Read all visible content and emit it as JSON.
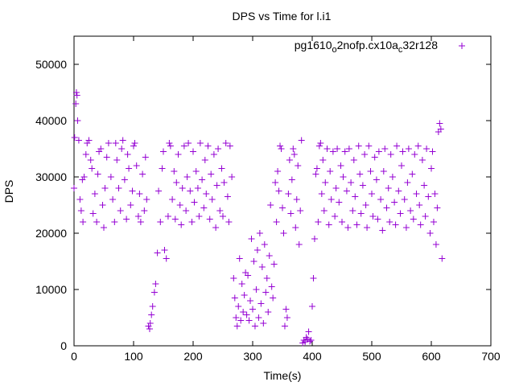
{
  "chart_data": {
    "type": "scatter",
    "title": "DPS vs Time for l.i1",
    "xlabel": "Time(s)",
    "ylabel": "DPS",
    "xlim": [
      0,
      700
    ],
    "ylim": [
      0,
      55000
    ],
    "xticks": [
      0,
      100,
      200,
      300,
      400,
      500,
      600,
      700
    ],
    "yticks": [
      0,
      10000,
      20000,
      30000,
      40000,
      50000
    ],
    "grid": false,
    "legend_position": "top-right",
    "marker": "plus",
    "colors": {
      "series": "#9400d3",
      "axis": "#000000"
    },
    "series": [
      {
        "name_parts": {
          "a": "pg1610",
          "b": "o",
          "c": "2nofp.cx10a",
          "d": "c",
          "e": "32r128"
        },
        "points": [
          [
            0,
            28000
          ],
          [
            1,
            37000
          ],
          [
            3,
            43000
          ],
          [
            4,
            45000
          ],
          [
            5,
            44500
          ],
          [
            6,
            40000
          ],
          [
            8,
            36500
          ],
          [
            10,
            26000
          ],
          [
            12,
            24000
          ],
          [
            14,
            29500
          ],
          [
            15,
            22000
          ],
          [
            17,
            30000
          ],
          [
            20,
            34000
          ],
          [
            22,
            36000
          ],
          [
            25,
            36500
          ],
          [
            28,
            33000
          ],
          [
            30,
            31500
          ],
          [
            32,
            23500
          ],
          [
            35,
            27000
          ],
          [
            38,
            22000
          ],
          [
            40,
            30500
          ],
          [
            42,
            34500
          ],
          [
            45,
            35000
          ],
          [
            48,
            25000
          ],
          [
            50,
            21000
          ],
          [
            52,
            28000
          ],
          [
            55,
            33500
          ],
          [
            58,
            36000
          ],
          [
            62,
            30000
          ],
          [
            65,
            26000
          ],
          [
            68,
            22000
          ],
          [
            70,
            36000
          ],
          [
            72,
            33000
          ],
          [
            75,
            28000
          ],
          [
            78,
            24000
          ],
          [
            80,
            35000
          ],
          [
            82,
            36500
          ],
          [
            85,
            29500
          ],
          [
            88,
            22500
          ],
          [
            90,
            34000
          ],
          [
            92,
            31500
          ],
          [
            95,
            25000
          ],
          [
            98,
            27500
          ],
          [
            100,
            35500
          ],
          [
            102,
            36000
          ],
          [
            105,
            32000
          ],
          [
            108,
            23000
          ],
          [
            110,
            27000
          ],
          [
            112,
            22000
          ],
          [
            115,
            30500
          ],
          [
            118,
            24000
          ],
          [
            120,
            33500
          ],
          [
            122,
            26000
          ],
          [
            125,
            3500
          ],
          [
            127,
            3000
          ],
          [
            128,
            4000
          ],
          [
            130,
            5500
          ],
          [
            132,
            7000
          ],
          [
            135,
            9500
          ],
          [
            137,
            11000
          ],
          [
            140,
            16500
          ],
          [
            142,
            27500
          ],
          [
            145,
            22000
          ],
          [
            148,
            31500
          ],
          [
            150,
            34500
          ],
          [
            152,
            17000
          ],
          [
            155,
            15500
          ],
          [
            158,
            23000
          ],
          [
            160,
            36000
          ],
          [
            162,
            35500
          ],
          [
            165,
            26000
          ],
          [
            168,
            31000
          ],
          [
            170,
            22500
          ],
          [
            172,
            29000
          ],
          [
            175,
            34000
          ],
          [
            178,
            25000
          ],
          [
            180,
            21500
          ],
          [
            182,
            28000
          ],
          [
            185,
            35500
          ],
          [
            188,
            24000
          ],
          [
            190,
            30000
          ],
          [
            192,
            36000
          ],
          [
            195,
            27500
          ],
          [
            198,
            22000
          ],
          [
            200,
            34500
          ],
          [
            202,
            25500
          ],
          [
            205,
            31000
          ],
          [
            208,
            28000
          ],
          [
            210,
            23000
          ],
          [
            212,
            36000
          ],
          [
            215,
            29500
          ],
          [
            218,
            24500
          ],
          [
            220,
            33000
          ],
          [
            222,
            27000
          ],
          [
            225,
            35500
          ],
          [
            228,
            22500
          ],
          [
            230,
            30500
          ],
          [
            232,
            26000
          ],
          [
            235,
            34000
          ],
          [
            238,
            21000
          ],
          [
            240,
            28500
          ],
          [
            242,
            35000
          ],
          [
            245,
            24000
          ],
          [
            248,
            31500
          ],
          [
            250,
            23000
          ],
          [
            252,
            29000
          ],
          [
            255,
            36000
          ],
          [
            258,
            26500
          ],
          [
            260,
            22000
          ],
          [
            262,
            35500
          ],
          [
            265,
            30000
          ],
          [
            268,
            12000
          ],
          [
            270,
            8500
          ],
          [
            272,
            5000
          ],
          [
            274,
            3500
          ],
          [
            276,
            7000
          ],
          [
            278,
            15500
          ],
          [
            280,
            4500
          ],
          [
            282,
            11000
          ],
          [
            284,
            6000
          ],
          [
            286,
            9000
          ],
          [
            288,
            13000
          ],
          [
            290,
            5500
          ],
          [
            292,
            12500
          ],
          [
            294,
            4500
          ],
          [
            296,
            8000
          ],
          [
            298,
            19000
          ],
          [
            300,
            6500
          ],
          [
            302,
            15000
          ],
          [
            304,
            3500
          ],
          [
            306,
            10000
          ],
          [
            308,
            17000
          ],
          [
            310,
            5000
          ],
          [
            312,
            20000
          ],
          [
            314,
            7500
          ],
          [
            316,
            14000
          ],
          [
            318,
            4000
          ],
          [
            320,
            18000
          ],
          [
            322,
            9500
          ],
          [
            324,
            12000
          ],
          [
            326,
            6000
          ],
          [
            328,
            16000
          ],
          [
            330,
            25000
          ],
          [
            332,
            10500
          ],
          [
            334,
            8500
          ],
          [
            336,
            14500
          ],
          [
            338,
            29000
          ],
          [
            340,
            22000
          ],
          [
            342,
            31000
          ],
          [
            344,
            27500
          ],
          [
            346,
            35500
          ],
          [
            348,
            35000
          ],
          [
            350,
            24500
          ],
          [
            352,
            20000
          ],
          [
            354,
            3500
          ],
          [
            356,
            6500
          ],
          [
            358,
            5000
          ],
          [
            360,
            27000
          ],
          [
            362,
            33000
          ],
          [
            364,
            23500
          ],
          [
            366,
            29500
          ],
          [
            368,
            35000
          ],
          [
            370,
            34000
          ],
          [
            372,
            21000
          ],
          [
            374,
            26000
          ],
          [
            376,
            32000
          ],
          [
            378,
            18000
          ],
          [
            380,
            24000
          ],
          [
            382,
            36500
          ],
          [
            384,
            500
          ],
          [
            386,
            1000
          ],
          [
            388,
            700
          ],
          [
            390,
            1500
          ],
          [
            392,
            1200
          ],
          [
            394,
            2500
          ],
          [
            396,
            800
          ],
          [
            398,
            1000
          ],
          [
            400,
            7000
          ],
          [
            402,
            12000
          ],
          [
            404,
            19000
          ],
          [
            406,
            30500
          ],
          [
            408,
            31500
          ],
          [
            410,
            22000
          ],
          [
            412,
            35500
          ],
          [
            414,
            36000
          ],
          [
            416,
            27000
          ],
          [
            418,
            33000
          ],
          [
            420,
            24000
          ],
          [
            422,
            29000
          ],
          [
            425,
            35000
          ],
          [
            428,
            21500
          ],
          [
            430,
            31000
          ],
          [
            432,
            26000
          ],
          [
            435,
            34500
          ],
          [
            438,
            23000
          ],
          [
            440,
            28000
          ],
          [
            442,
            35000
          ],
          [
            445,
            25500
          ],
          [
            448,
            32000
          ],
          [
            450,
            22000
          ],
          [
            452,
            30000
          ],
          [
            455,
            34500
          ],
          [
            458,
            27500
          ],
          [
            460,
            21000
          ],
          [
            462,
            35000
          ],
          [
            465,
            29000
          ],
          [
            468,
            24000
          ],
          [
            470,
            33000
          ],
          [
            472,
            26500
          ],
          [
            475,
            21500
          ],
          [
            478,
            35500
          ],
          [
            480,
            30500
          ],
          [
            482,
            23500
          ],
          [
            485,
            28500
          ],
          [
            488,
            34000
          ],
          [
            490,
            25000
          ],
          [
            492,
            21000
          ],
          [
            495,
            35500
          ],
          [
            498,
            31000
          ],
          [
            500,
            27000
          ],
          [
            502,
            23000
          ],
          [
            505,
            33500
          ],
          [
            508,
            29500
          ],
          [
            510,
            22500
          ],
          [
            512,
            34500
          ],
          [
            515,
            26000
          ],
          [
            518,
            20500
          ],
          [
            520,
            31000
          ],
          [
            522,
            35000
          ],
          [
            525,
            24500
          ],
          [
            528,
            28000
          ],
          [
            530,
            22000
          ],
          [
            532,
            34000
          ],
          [
            535,
            30000
          ],
          [
            538,
            25500
          ],
          [
            540,
            21500
          ],
          [
            542,
            35500
          ],
          [
            545,
            27500
          ],
          [
            548,
            23500
          ],
          [
            550,
            32000
          ],
          [
            552,
            34500
          ],
          [
            555,
            26000
          ],
          [
            558,
            21000
          ],
          [
            560,
            29000
          ],
          [
            562,
            35000
          ],
          [
            565,
            24000
          ],
          [
            568,
            30500
          ],
          [
            570,
            22500
          ],
          [
            572,
            34000
          ],
          [
            575,
            27000
          ],
          [
            578,
            35500
          ],
          [
            580,
            25000
          ],
          [
            582,
            21500
          ],
          [
            585,
            33000
          ],
          [
            588,
            28500
          ],
          [
            590,
            23000
          ],
          [
            592,
            35000
          ],
          [
            595,
            26500
          ],
          [
            598,
            20000
          ],
          [
            600,
            31500
          ],
          [
            602,
            34500
          ],
          [
            604,
            22000
          ],
          [
            606,
            27000
          ],
          [
            608,
            18000
          ],
          [
            610,
            24500
          ],
          [
            612,
            38000
          ],
          [
            614,
            39500
          ],
          [
            616,
            38500
          ],
          [
            618,
            15500
          ]
        ]
      }
    ]
  }
}
